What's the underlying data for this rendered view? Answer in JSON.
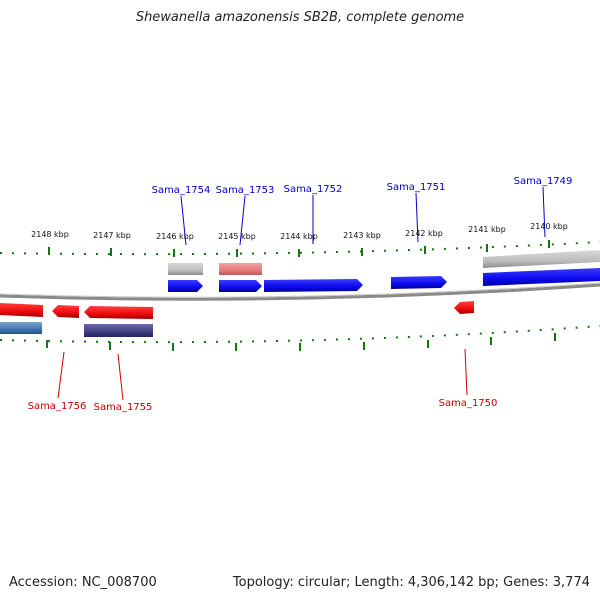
{
  "title": "Shewanella amazonensis SB2B, complete genome",
  "footer": {
    "accession": "Accession: NC_008700",
    "topology": "Topology: circular; Length: 4,306,142 bp; Genes: 3,774"
  },
  "colors": {
    "forward_gene": "#0a0aee",
    "reverse_gene": "#ee0a0a",
    "forward_label": "#0000cc",
    "reverse_label": "#cc0000",
    "tick": "#117711",
    "backbone": "#888888"
  },
  "scale_labels": [
    "2148 kbp",
    "2147 kbp",
    "2146 kbp",
    "2145 kbp",
    "2144 kbp",
    "2143 kbp",
    "2142 kbp",
    "2141 kbp",
    "2140 kbp"
  ],
  "forward_genes": [
    "Sama_1754",
    "Sama_1753",
    "Sama_1752",
    "Sama_1751",
    "Sama_1749"
  ],
  "reverse_genes": [
    "Sama_1756",
    "Sama_1755",
    "Sama_1750"
  ]
}
